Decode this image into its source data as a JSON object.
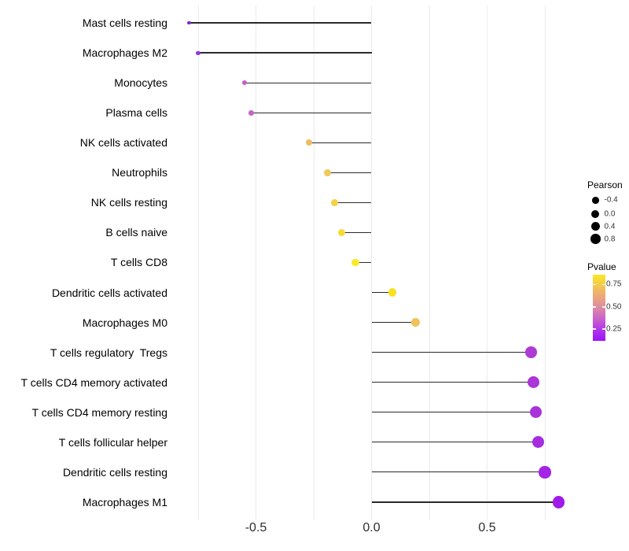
{
  "chart_data": {
    "type": "scatter",
    "variant": "lollipop",
    "title": "",
    "xlabel": "",
    "ylabel": "",
    "grid": "vertical-only",
    "background": "#ffffff",
    "stem_color": "#2a2a2a",
    "baseline": 0.0,
    "xlim": [
      -0.87,
      0.89
    ],
    "x_ticks": [
      {
        "value": -0.5,
        "label": "-0.5"
      },
      {
        "value": 0.0,
        "label": "0.0"
      },
      {
        "value": 0.5,
        "label": "0.5"
      }
    ],
    "gridline_values": [
      -0.75,
      -0.5,
      -0.25,
      0.0,
      0.25,
      0.5,
      0.75
    ],
    "categories": [
      "Mast cells resting",
      "Macrophages M2",
      "Monocytes",
      "Plasma cells",
      "NK cells activated",
      "Neutrophils",
      "NK cells resting",
      "B cells naive",
      "T cells CD8",
      "Dendritic cells activated",
      "Macrophages M0",
      "T cells regulatory  Tregs",
      "T cells CD4 memory activated",
      "T cells CD4 memory resting",
      "T cells follicular helper",
      "Dendritic cells resting",
      "Macrophages M1"
    ],
    "points": [
      {
        "category": "Mast cells resting",
        "pearson": -0.79,
        "color": "#7E2BD1"
      },
      {
        "category": "Macrophages M2",
        "pearson": -0.75,
        "color": "#9134E0"
      },
      {
        "category": "Monocytes",
        "pearson": -0.55,
        "color": "#C55EC8"
      },
      {
        "category": "Plasma cells",
        "pearson": -0.52,
        "color": "#C765C5"
      },
      {
        "category": "NK cells activated",
        "pearson": -0.27,
        "color": "#EEBD62"
      },
      {
        "category": "Neutrophils",
        "pearson": -0.19,
        "color": "#F0C958"
      },
      {
        "category": "NK cells resting",
        "pearson": -0.16,
        "color": "#F3D245"
      },
      {
        "category": "B cells naive",
        "pearson": -0.13,
        "color": "#F6DB35"
      },
      {
        "category": "T cells CD8",
        "pearson": -0.07,
        "color": "#FAE928"
      },
      {
        "category": "Dendritic cells activated",
        "pearson": 0.09,
        "color": "#F9E122"
      },
      {
        "category": "Macrophages M0",
        "pearson": 0.19,
        "color": "#EFC25D"
      },
      {
        "category": "T cells regulatory  Tregs",
        "pearson": 0.69,
        "color": "#AF3BD4"
      },
      {
        "category": "T cells CD4 memory activated",
        "pearson": 0.7,
        "color": "#AC35D8"
      },
      {
        "category": "T cells CD4 memory resting",
        "pearson": 0.71,
        "color": "#A933DB"
      },
      {
        "category": "T cells follicular helper",
        "pearson": 0.72,
        "color": "#A52CE0"
      },
      {
        "category": "Dendritic cells resting",
        "pearson": 0.75,
        "color": "#A324E4"
      },
      {
        "category": "Macrophages M1",
        "pearson": 0.81,
        "color": "#9F1BE8"
      }
    ],
    "legend_size": {
      "title": "Pearson",
      "dot_color": "#000000",
      "entries": [
        {
          "label": "-0.4",
          "radius": 4.3
        },
        {
          "label": "0.0",
          "radius": 5.0
        },
        {
          "label": "0.4",
          "radius": 5.7
        },
        {
          "label": "0.8",
          "radius": 6.3
        }
      ]
    },
    "legend_color": {
      "title": "Pvalue",
      "gradient_stops": [
        {
          "pos": 0.0,
          "color": "#FAE623"
        },
        {
          "pos": 0.15,
          "color": "#F5CC4D"
        },
        {
          "pos": 0.32,
          "color": "#ECA878"
        },
        {
          "pos": 0.49,
          "color": "#DE8C9F"
        },
        {
          "pos": 0.65,
          "color": "#CC66C8"
        },
        {
          "pos": 0.83,
          "color": "#B238E8"
        },
        {
          "pos": 1.0,
          "color": "#9B12FB"
        }
      ],
      "tick_labels": [
        {
          "label": "0.75",
          "frac_from_top": 0.148
        },
        {
          "label": "0.50",
          "frac_from_top": 0.486
        },
        {
          "label": "0.25",
          "frac_from_top": 0.824
        }
      ]
    }
  }
}
